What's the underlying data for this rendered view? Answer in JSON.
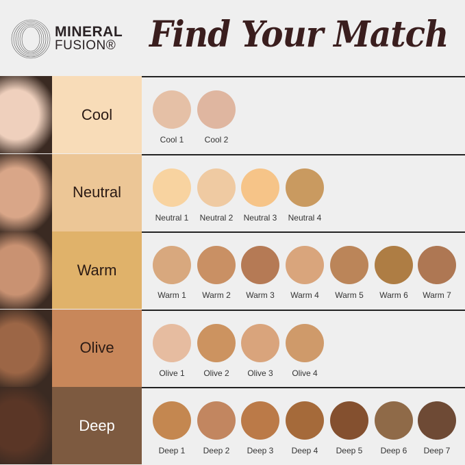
{
  "header": {
    "brand_line1": "MINERAL",
    "brand_line2": "FUSION®",
    "title": "Find Your Match"
  },
  "rows": [
    {
      "category": "Cool",
      "bg": "#f8dcb8",
      "text": "#2a1a14",
      "skin": "#efd0bd",
      "shades": [
        {
          "name": "Cool 1",
          "color": "#e5c0a6"
        },
        {
          "name": "Cool 2",
          "color": "#dfb6a0"
        }
      ]
    },
    {
      "category": "Neutral",
      "bg": "#ecc696",
      "text": "#2a1a14",
      "skin": "#d9a688",
      "shades": [
        {
          "name": "Neutral 1",
          "color": "#f8d3a0"
        },
        {
          "name": "Neutral 2",
          "color": "#efcaa2"
        },
        {
          "name": "Neutral 3",
          "color": "#f6c488"
        },
        {
          "name": "Neutral 4",
          "color": "#c99a60"
        }
      ]
    },
    {
      "category": "Warm",
      "bg": "#e0b26a",
      "text": "#2a1a14",
      "skin": "#c99272",
      "shades": [
        {
          "name": "Warm 1",
          "color": "#d8a87e"
        },
        {
          "name": "Warm 2",
          "color": "#c99064"
        },
        {
          "name": "Warm 3",
          "color": "#b57a55"
        },
        {
          "name": "Warm 4",
          "color": "#d9a57c"
        },
        {
          "name": "Warm 5",
          "color": "#bb8559"
        },
        {
          "name": "Warm 6",
          "color": "#ae7d44"
        },
        {
          "name": "Warm 7",
          "color": "#ae7753"
        }
      ]
    },
    {
      "category": "Olive",
      "bg": "#c8875a",
      "text": "#2a1a14",
      "skin": "#9c6646",
      "shades": [
        {
          "name": "Olive 1",
          "color": "#e6bca0"
        },
        {
          "name": "Olive 2",
          "color": "#cc9360"
        },
        {
          "name": "Olive 3",
          "color": "#d9a47c"
        },
        {
          "name": "Olive 4",
          "color": "#cf9a6a"
        }
      ]
    },
    {
      "category": "Deep",
      "bg": "#7d5a40",
      "text": "#ffffff",
      "skin": "#5a3626",
      "shades": [
        {
          "name": "Deep 1",
          "color": "#c48750"
        },
        {
          "name": "Deep 2",
          "color": "#c28660"
        },
        {
          "name": "Deep 3",
          "color": "#bb7a48"
        },
        {
          "name": "Deep 4",
          "color": "#a56a3a"
        },
        {
          "name": "Deep 5",
          "color": "#84502f"
        },
        {
          "name": "Deep 6",
          "color": "#8f6a48"
        },
        {
          "name": "Deep 7",
          "color": "#6e4a35"
        }
      ]
    }
  ]
}
